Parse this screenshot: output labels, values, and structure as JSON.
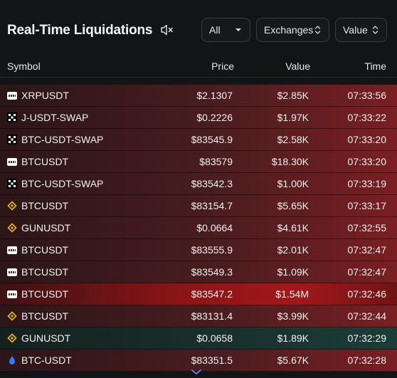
{
  "header": {
    "title": "Real-Time Liquidations",
    "mute_icon": "speaker-muted-icon",
    "filter_all": {
      "label": "All",
      "icon": "caret-down-icon"
    },
    "filter_exchanges": {
      "label": "Exchanges",
      "icon": "sort-updown-icon"
    },
    "filter_value": {
      "label": "Value",
      "icon": "sort-updown-icon"
    }
  },
  "columns": {
    "symbol": "Symbol",
    "price": "Price",
    "value": "Value",
    "time": "Time"
  },
  "colors": {
    "short_row": "#7a1f22",
    "long_row": "#1c3d37",
    "highlight_row": "#a21819",
    "binance": "#f0b90b",
    "okx": "#ffffff"
  },
  "rows": [
    {
      "exchange": "bingx",
      "symbol": "XRPUSDT",
      "price": "$2.1307",
      "value": "$2.85K",
      "time": "07:33:56",
      "side": "short"
    },
    {
      "exchange": "okx",
      "symbol": "J-USDT-SWAP",
      "price": "$0.2226",
      "value": "$1.97K",
      "time": "07:33:22",
      "side": "short"
    },
    {
      "exchange": "okx",
      "symbol": "BTC-USDT-SWAP",
      "price": "$83545.9",
      "value": "$2.58K",
      "time": "07:33:20",
      "side": "short"
    },
    {
      "exchange": "bingx",
      "symbol": "BTCUSDT",
      "price": "$83579",
      "value": "$18.30K",
      "time": "07:33:20",
      "side": "short"
    },
    {
      "exchange": "okx",
      "symbol": "BTC-USDT-SWAP",
      "price": "$83542.3",
      "value": "$1.00K",
      "time": "07:33:19",
      "side": "short"
    },
    {
      "exchange": "binance",
      "symbol": "BTCUSDT",
      "price": "$83154.7",
      "value": "$5.65K",
      "time": "07:33:17",
      "side": "short"
    },
    {
      "exchange": "binance",
      "symbol": "GUNUSDT",
      "price": "$0.0664",
      "value": "$4.61K",
      "time": "07:32:55",
      "side": "short"
    },
    {
      "exchange": "bingx",
      "symbol": "BTCUSDT",
      "price": "$83555.9",
      "value": "$2.01K",
      "time": "07:32:47",
      "side": "short"
    },
    {
      "exchange": "bingx",
      "symbol": "BTCUSDT",
      "price": "$83549.3",
      "value": "$1.09K",
      "time": "07:32:47",
      "side": "short"
    },
    {
      "exchange": "bingx",
      "symbol": "BTCUSDT",
      "price": "$83547.2",
      "value": "$1.54M",
      "time": "07:32:46",
      "side": "highlight"
    },
    {
      "exchange": "binance",
      "symbol": "BTCUSDT",
      "price": "$83131.4",
      "value": "$3.99K",
      "time": "07:32:44",
      "side": "short"
    },
    {
      "exchange": "binance",
      "symbol": "GUNUSDT",
      "price": "$0.0658",
      "value": "$1.89K",
      "time": "07:32:29",
      "side": "long"
    },
    {
      "exchange": "drop",
      "symbol": "BTC-USDT",
      "price": "$83351.5",
      "value": "$5.67K",
      "time": "07:32:28",
      "side": "short"
    }
  ],
  "footer": {
    "scroll_icon": "chevron-down-icon"
  }
}
